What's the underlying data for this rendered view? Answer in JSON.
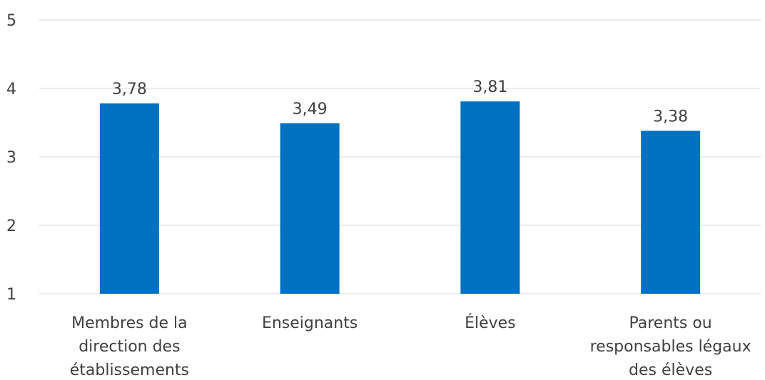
{
  "chart_data": {
    "type": "bar",
    "categories": [
      "Membres de la direction des établissements",
      "Enseignants",
      "Élèves",
      "Parents ou responsables légaux des élèves"
    ],
    "category_lines": [
      [
        "Membres de la",
        "direction des",
        "établissements"
      ],
      [
        "Enseignants"
      ],
      [
        "Élèves"
      ],
      [
        "Parents ou",
        "responsables légaux",
        "des élèves"
      ]
    ],
    "values": [
      3.78,
      3.49,
      3.81,
      3.38
    ],
    "value_labels": [
      "3,78",
      "3,49",
      "3,81",
      "3,38"
    ],
    "yticks": [
      1,
      2,
      3,
      4,
      5
    ],
    "ylim": [
      1,
      5
    ],
    "grid": true,
    "legend": "none",
    "bar_color": "#0070c0",
    "title": "",
    "xlabel": "",
    "ylabel": ""
  }
}
